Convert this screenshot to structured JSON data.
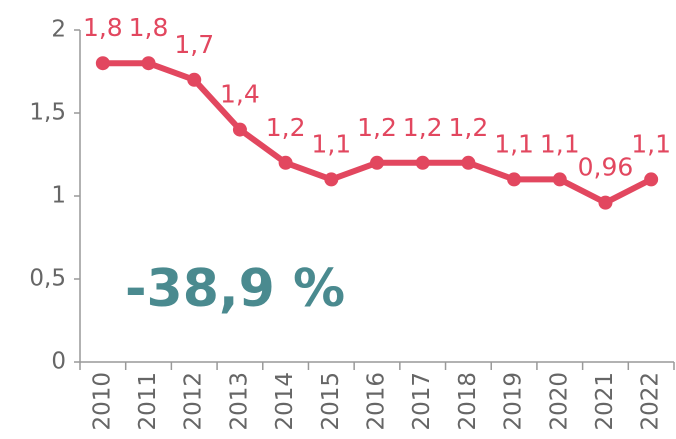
{
  "chart_data": {
    "type": "line",
    "categories": [
      "2010",
      "2011",
      "2012",
      "2013",
      "2014",
      "2015",
      "2016",
      "2017",
      "2018",
      "2019",
      "2020",
      "2021",
      "2022"
    ],
    "series": [
      {
        "color": "#e2475f",
        "values": [
          1.8,
          1.8,
          1.7,
          1.4,
          1.2,
          1.1,
          1.2,
          1.2,
          1.2,
          1.1,
          1.1,
          0.96,
          1.1
        ],
        "value_labels": [
          "1,8",
          "1,8",
          "1,7",
          "1,4",
          "1,2",
          "1,1",
          "1,2",
          "1,2",
          "1,2",
          "1,1",
          "1,1",
          "0,96",
          "1,1"
        ]
      }
    ],
    "ylim": [
      0,
      2
    ],
    "yticks": [
      0,
      {
        "value": 0.5,
        "label": "0,5"
      },
      1,
      {
        "value": 1.5,
        "label": "1,5"
      },
      2
    ],
    "annotation": "-38,9 %",
    "annotation_color": "#4a8a8f"
  }
}
